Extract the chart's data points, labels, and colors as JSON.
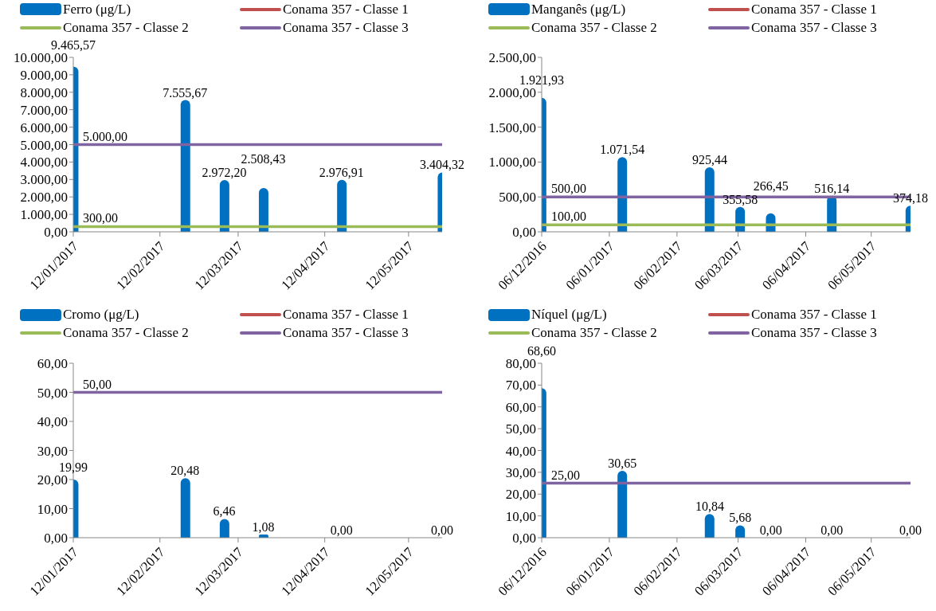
{
  "chart_data": [
    {
      "type": "bar",
      "legend": "top",
      "x": [
        "2017-01-12",
        "2017-02-21",
        "2017-03-07",
        "2017-03-21",
        "2017-04-18",
        "2017-05-24"
      ],
      "xlim": [
        "2017-01-12",
        "2017-05-24"
      ],
      "xticks": [
        {
          "value": "2017-01-12",
          "label": "12/01/2017"
        },
        {
          "value": "2017-02-12",
          "label": "12/02/2017"
        },
        {
          "value": "2017-03-12",
          "label": "12/03/2017"
        },
        {
          "value": "2017-04-12",
          "label": "12/04/2017"
        },
        {
          "value": "2017-05-12",
          "label": "12/05/2017"
        }
      ],
      "ylim": [
        0,
        10000
      ],
      "yticks": [
        {
          "value": 0,
          "label": "0,00"
        },
        {
          "value": 1000,
          "label": "1.000,00"
        },
        {
          "value": 2000,
          "label": "2.000,00"
        },
        {
          "value": 3000,
          "label": "3.000,00"
        },
        {
          "value": 4000,
          "label": "4.000,00"
        },
        {
          "value": 5000,
          "label": "5.000,00"
        },
        {
          "value": 6000,
          "label": "6.000,00"
        },
        {
          "value": 7000,
          "label": "7.000,00"
        },
        {
          "value": 8000,
          "label": "8.000,00"
        },
        {
          "value": 9000,
          "label": "9.000,00"
        },
        {
          "value": 10000,
          "label": "10.000,00"
        }
      ],
      "series": [
        {
          "name": "Ferro (μg/L)",
          "color": "#0070c0",
          "values": [
            9465.57,
            7555.67,
            2972.2,
            2508.43,
            2976.91,
            3404.32
          ],
          "value_labels": [
            "9.465,57",
            "7.555,67",
            "2.972,20",
            "2.508,43",
            "2.976,91",
            "3.404,32"
          ]
        },
        {
          "name": "Conama 357 - Classe 1",
          "type": "line",
          "color": "#c0504d",
          "values": [
            null,
            null,
            null,
            null,
            null,
            null
          ]
        },
        {
          "name": "Conama 357 - Classe 2",
          "type": "line",
          "color": "#9bbb59",
          "x": [
            "2017-01-12",
            "2017-05-24"
          ],
          "values": [
            300,
            300
          ],
          "value_labels": [
            "300,00",
            null
          ]
        },
        {
          "name": "Conama 357 - Classe 3",
          "type": "line",
          "color": "#8064a2",
          "x": [
            "2017-01-12",
            "2017-05-24"
          ],
          "values": [
            5000,
            5000
          ],
          "value_labels": [
            "5.000,00",
            null
          ]
        }
      ]
    },
    {
      "type": "bar",
      "legend": "top",
      "x": [
        "2016-12-06",
        "2017-01-12",
        "2017-02-21",
        "2017-03-07",
        "2017-03-21",
        "2017-04-18",
        "2017-05-24"
      ],
      "xlim": [
        "2016-12-06",
        "2017-05-24"
      ],
      "xticks": [
        {
          "value": "2016-12-06",
          "label": "06/12/2016"
        },
        {
          "value": "2017-01-06",
          "label": "06/01/2017"
        },
        {
          "value": "2017-02-06",
          "label": "06/02/2017"
        },
        {
          "value": "2017-03-06",
          "label": "06/03/2017"
        },
        {
          "value": "2017-04-06",
          "label": "06/04/2017"
        },
        {
          "value": "2017-05-06",
          "label": "06/05/2017"
        }
      ],
      "ylim": [
        0,
        2500
      ],
      "yticks": [
        {
          "value": 0,
          "label": "0,00"
        },
        {
          "value": 500,
          "label": "500,00"
        },
        {
          "value": 1000,
          "label": "1.000,00"
        },
        {
          "value": 1500,
          "label": "1.500,00"
        },
        {
          "value": 2000,
          "label": "2.000,00"
        },
        {
          "value": 2500,
          "label": "2.500,00"
        }
      ],
      "series": [
        {
          "name": "Manganês (μg/L)",
          "color": "#0070c0",
          "values": [
            1921.93,
            1071.54,
            925.44,
            355.58,
            266.45,
            516.14,
            374.18
          ],
          "value_labels": [
            "1.921,93",
            "1.071,54",
            "925,44",
            "355,58",
            "266,45",
            "516,14",
            "374,18"
          ]
        },
        {
          "name": "Conama 357 - Classe 1",
          "type": "line",
          "color": "#c0504d",
          "values": [
            null,
            null,
            null,
            null,
            null,
            null,
            null
          ]
        },
        {
          "name": "Conama 357 - Classe 2",
          "type": "line",
          "color": "#9bbb59",
          "x": [
            "2016-12-06",
            "2017-05-24"
          ],
          "values": [
            100,
            100
          ],
          "value_labels": [
            "100,00",
            null
          ]
        },
        {
          "name": "Conama 357 - Classe 3",
          "type": "line",
          "color": "#8064a2",
          "x": [
            "2016-12-06",
            "2017-05-24"
          ],
          "values": [
            500,
            500
          ],
          "value_labels": [
            "500,00",
            null
          ]
        }
      ]
    },
    {
      "type": "bar",
      "legend": "top",
      "x": [
        "2017-01-12",
        "2017-02-21",
        "2017-03-07",
        "2017-03-21",
        "2017-04-18",
        "2017-05-24"
      ],
      "xlim": [
        "2017-01-12",
        "2017-05-24"
      ],
      "xticks": [
        {
          "value": "2017-01-12",
          "label": "12/01/2017"
        },
        {
          "value": "2017-02-12",
          "label": "12/02/2017"
        },
        {
          "value": "2017-03-12",
          "label": "12/03/2017"
        },
        {
          "value": "2017-04-12",
          "label": "12/04/2017"
        },
        {
          "value": "2017-05-12",
          "label": "12/05/2017"
        }
      ],
      "ylim": [
        0,
        60
      ],
      "yticks": [
        {
          "value": 0,
          "label": "0,00"
        },
        {
          "value": 10,
          "label": "10,00"
        },
        {
          "value": 20,
          "label": "20,00"
        },
        {
          "value": 30,
          "label": "30,00"
        },
        {
          "value": 40,
          "label": "40,00"
        },
        {
          "value": 50,
          "label": "50,00"
        },
        {
          "value": 60,
          "label": "60,00"
        }
      ],
      "series": [
        {
          "name": "Cromo (μg/L)",
          "color": "#0070c0",
          "values": [
            19.99,
            20.48,
            6.46,
            1.08,
            0,
            0
          ],
          "value_labels": [
            "19,99",
            "20,48",
            "6,46",
            "1,08",
            "0,00",
            "0,00"
          ]
        },
        {
          "name": "Conama 357 - Classe 1",
          "type": "line",
          "color": "#c0504d",
          "values": [
            null,
            null,
            null,
            null,
            null,
            null
          ]
        },
        {
          "name": "Conama 357 - Classe 2",
          "type": "line",
          "color": "#9bbb59",
          "values": [
            null,
            null,
            null,
            null,
            null,
            null
          ]
        },
        {
          "name": "Conama 357 - Classe 3",
          "type": "line",
          "color": "#8064a2",
          "x": [
            "2017-01-12",
            "2017-05-24"
          ],
          "values": [
            50,
            50
          ],
          "value_labels": [
            "50,00",
            null
          ]
        }
      ]
    },
    {
      "type": "bar",
      "legend": "top",
      "x": [
        "2016-12-06",
        "2017-01-12",
        "2017-02-21",
        "2017-03-07",
        "2017-03-21",
        "2017-04-18",
        "2017-05-24"
      ],
      "xlim": [
        "2016-12-06",
        "2017-05-24"
      ],
      "xticks": [
        {
          "value": "2016-12-06",
          "label": "06/12/2016"
        },
        {
          "value": "2017-01-06",
          "label": "06/01/2017"
        },
        {
          "value": "2017-02-06",
          "label": "06/02/2017"
        },
        {
          "value": "2017-03-06",
          "label": "06/03/2017"
        },
        {
          "value": "2017-04-06",
          "label": "06/04/2017"
        },
        {
          "value": "2017-05-06",
          "label": "06/05/2017"
        }
      ],
      "ylim": [
        0,
        80
      ],
      "yticks": [
        {
          "value": 0,
          "label": "0,00"
        },
        {
          "value": 10,
          "label": "10,00"
        },
        {
          "value": 20,
          "label": "20,00"
        },
        {
          "value": 30,
          "label": "30,00"
        },
        {
          "value": 40,
          "label": "40,00"
        },
        {
          "value": 50,
          "label": "50,00"
        },
        {
          "value": 60,
          "label": "60,00"
        },
        {
          "value": 70,
          "label": "70,00"
        },
        {
          "value": 80,
          "label": "80,00"
        }
      ],
      "series": [
        {
          "name": "Níquel (μg/L)",
          "color": "#0070c0",
          "values": [
            68.6,
            30.65,
            10.84,
            5.68,
            0,
            0,
            0
          ],
          "value_labels": [
            "68,60",
            "30,65",
            "10,84",
            "5,68",
            "0,00",
            "0,00",
            "0,00"
          ]
        },
        {
          "name": "Conama 357 - Classe 1",
          "type": "line",
          "color": "#c0504d",
          "values": [
            null,
            null,
            null,
            null,
            null,
            null,
            null
          ]
        },
        {
          "name": "Conama 357 - Classe 2",
          "type": "line",
          "color": "#9bbb59",
          "values": [
            null,
            null,
            null,
            null,
            null,
            null,
            null
          ]
        },
        {
          "name": "Conama 357 - Classe 3",
          "type": "line",
          "color": "#8064a2",
          "x": [
            "2016-12-06",
            "2017-05-24"
          ],
          "values": [
            25,
            25
          ],
          "value_labels": [
            "25,00",
            null
          ]
        }
      ]
    }
  ]
}
